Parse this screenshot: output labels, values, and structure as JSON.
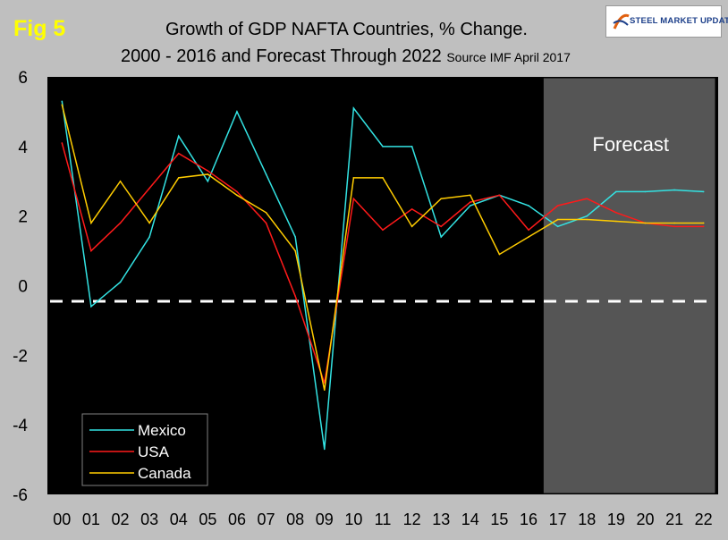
{
  "figure": {
    "label": "Fig 5",
    "title_line1": "Growth of GDP NAFTA Countries, % Change.",
    "title_line2": "2000 - 2016 and Forecast Through 2022",
    "source": "Source IMF April 2017",
    "logo_text": "STEEL MARKET UPDATE"
  },
  "chart_data": {
    "type": "line",
    "title": "Growth of GDP NAFTA Countries, % Change. 2000 - 2016 and Forecast Through 2022",
    "xlabel": "",
    "ylabel": "",
    "categories": [
      "00",
      "01",
      "02",
      "03",
      "04",
      "05",
      "06",
      "07",
      "08",
      "09",
      "10",
      "11",
      "12",
      "13",
      "14",
      "15",
      "16",
      "17",
      "18",
      "19",
      "20",
      "21",
      "22"
    ],
    "ylim": [
      -6,
      6
    ],
    "yticks": [
      "6",
      "4",
      "2",
      "0",
      "-2",
      "-4",
      "-6"
    ],
    "ytick_values": [
      6,
      4,
      2,
      0,
      -2,
      -4,
      -6
    ],
    "reference_line": -0.45,
    "forecast_label": "Forecast",
    "forecast_start_index": 16.5,
    "legend_position": "bottom-left",
    "series": [
      {
        "name": "Mexico",
        "color": "#33e3e3",
        "values": [
          5.3,
          -0.6,
          0.1,
          1.4,
          4.3,
          3.0,
          5.0,
          3.2,
          1.4,
          -4.7,
          5.1,
          4.0,
          4.0,
          1.4,
          2.3,
          2.6,
          2.3,
          1.7,
          2.0,
          2.7,
          2.7,
          2.75,
          2.7
        ]
      },
      {
        "name": "USA",
        "color": "#ff1a1a",
        "values": [
          4.1,
          1.0,
          1.8,
          2.8,
          3.8,
          3.3,
          2.7,
          1.8,
          -0.3,
          -2.8,
          2.5,
          1.6,
          2.2,
          1.7,
          2.4,
          2.6,
          1.6,
          2.3,
          2.5,
          2.1,
          1.8,
          1.7,
          1.7
        ]
      },
      {
        "name": "Canada",
        "color": "#ffcc00",
        "values": [
          5.2,
          1.8,
          3.0,
          1.8,
          3.1,
          3.2,
          2.6,
          2.1,
          1.0,
          -3.0,
          3.1,
          3.1,
          1.7,
          2.5,
          2.6,
          0.9,
          1.4,
          1.9,
          1.9,
          1.85,
          1.8,
          1.8,
          1.8
        ]
      }
    ]
  }
}
